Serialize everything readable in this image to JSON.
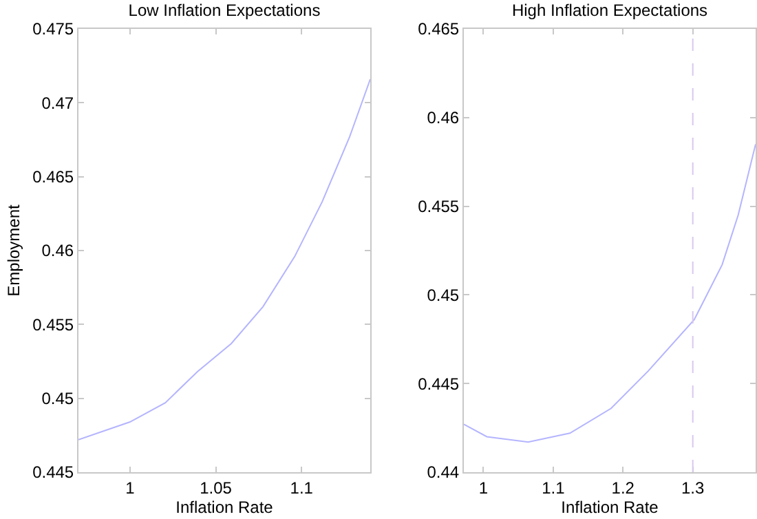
{
  "chart_data": [
    {
      "type": "line",
      "title": "Low Inflation Expectations",
      "xlabel": "Inflation Rate",
      "ylabel": "Employment",
      "x": [
        0.97,
        1.0,
        1.0206,
        1.0393,
        1.059,
        1.0775,
        1.096,
        1.112,
        1.128,
        1.14
      ],
      "series": [
        {
          "color": "#b4b4ff",
          "values": [
            0.4472,
            0.4484,
            0.4497,
            0.4518,
            0.4537,
            0.4562,
            0.4596,
            0.4633,
            0.4677,
            0.4716
          ]
        }
      ],
      "xlim": [
        0.97,
        1.14
      ],
      "xticks": [
        1,
        1.05,
        1.1
      ],
      "ylim": [
        0.445,
        0.475
      ],
      "yticks": [
        0.445,
        0.45,
        0.455,
        0.46,
        0.465,
        0.47,
        0.475
      ],
      "grid": false,
      "marker": "none",
      "line_style": "solid"
    },
    {
      "type": "line",
      "title": "High Inflation Expectations",
      "xlabel": "Inflation Rate",
      "x": [
        0.972,
        1.005,
        1.064,
        1.124,
        1.183,
        1.236,
        1.302,
        1.342,
        1.365,
        1.39
      ],
      "series": [
        {
          "color": "#b4b4ff",
          "values": [
            0.4427,
            0.442,
            0.4417,
            0.4422,
            0.4436,
            0.4457,
            0.4486,
            0.4517,
            0.4545,
            0.4585
          ]
        }
      ],
      "xlim": [
        0.972,
        1.39
      ],
      "xticks": [
        1,
        1.1,
        1.2,
        1.3
      ],
      "ylim": [
        0.44,
        0.465
      ],
      "yticks": [
        0.44,
        0.445,
        0.45,
        0.455,
        0.46,
        0.465
      ],
      "grid": false,
      "marker": "none",
      "line_style": "solid",
      "ref_lines": [
        {
          "axis": "x",
          "value": 1.3,
          "color": "#d8c8f0",
          "line_style": "dashed"
        }
      ]
    }
  ]
}
